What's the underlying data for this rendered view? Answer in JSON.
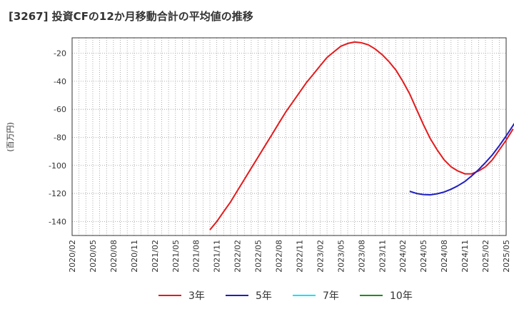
{
  "chart_data": {
    "type": "line",
    "title": "[3267]  投資CFの12か月移動合計の平均値の推移",
    "ylabel": "(百万円)",
    "xlabel": "",
    "x_ticks": [
      "2020/02",
      "2020/05",
      "2020/08",
      "2020/11",
      "2021/02",
      "2021/05",
      "2021/08",
      "2021/11",
      "2022/02",
      "2022/05",
      "2022/08",
      "2022/11",
      "2023/02",
      "2023/05",
      "2023/08",
      "2023/11",
      "2024/02",
      "2024/05",
      "2024/08",
      "2024/11",
      "2025/02",
      "2025/05"
    ],
    "y_ticks": [
      -20,
      -40,
      -60,
      -80,
      -100,
      -120,
      -140
    ],
    "ylim": [
      -150,
      -9
    ],
    "grid": true,
    "legend_position": "bottom",
    "series": [
      {
        "name": "3年",
        "color": "#e31a1c",
        "points": [
          [
            "2021/10",
            -146
          ],
          [
            "2021/11",
            -140
          ],
          [
            "2021/12",
            -133
          ],
          [
            "2022/01",
            -126
          ],
          [
            "2022/02",
            -118
          ],
          [
            "2022/03",
            -110
          ],
          [
            "2022/04",
            -102
          ],
          [
            "2022/05",
            -94
          ],
          [
            "2022/06",
            -86
          ],
          [
            "2022/07",
            -78
          ],
          [
            "2022/08",
            -70
          ],
          [
            "2022/09",
            -62
          ],
          [
            "2022/10",
            -55
          ],
          [
            "2022/11",
            -48
          ],
          [
            "2022/12",
            -41
          ],
          [
            "2023/01",
            -35
          ],
          [
            "2023/02",
            -29
          ],
          [
            "2023/03",
            -23
          ],
          [
            "2023/04",
            -19
          ],
          [
            "2023/05",
            -15
          ],
          [
            "2023/06",
            -13
          ],
          [
            "2023/07",
            -12
          ],
          [
            "2023/08",
            -12.5
          ],
          [
            "2023/09",
            -14
          ],
          [
            "2023/10",
            -17
          ],
          [
            "2023/11",
            -21
          ],
          [
            "2023/12",
            -26
          ],
          [
            "2024/01",
            -32
          ],
          [
            "2024/02",
            -40
          ],
          [
            "2024/03",
            -49
          ],
          [
            "2024/04",
            -60
          ],
          [
            "2024/05",
            -71
          ],
          [
            "2024/06",
            -81
          ],
          [
            "2024/07",
            -89
          ],
          [
            "2024/08",
            -96
          ],
          [
            "2024/09",
            -101
          ],
          [
            "2024/10",
            -104
          ],
          [
            "2024/11",
            -106
          ],
          [
            "2024/12",
            -106
          ],
          [
            "2025/01",
            -104
          ],
          [
            "2025/02",
            -101
          ],
          [
            "2025/03",
            -96
          ],
          [
            "2025/04",
            -89
          ],
          [
            "2025/05",
            -82
          ],
          [
            "2025/06",
            -74
          ]
        ]
      },
      {
        "name": "5年",
        "color": "#1f1fbf",
        "points": [
          [
            "2024/03",
            -118.5
          ],
          [
            "2024/04",
            -120
          ],
          [
            "2024/05",
            -120.8
          ],
          [
            "2024/06",
            -121
          ],
          [
            "2024/07",
            -120.2
          ],
          [
            "2024/08",
            -119
          ],
          [
            "2024/09",
            -117
          ],
          [
            "2024/10",
            -114.5
          ],
          [
            "2024/11",
            -111.5
          ],
          [
            "2024/12",
            -107.5
          ],
          [
            "2025/01",
            -103
          ],
          [
            "2025/02",
            -98
          ],
          [
            "2025/03",
            -92.5
          ],
          [
            "2025/04",
            -86
          ],
          [
            "2025/05",
            -79
          ],
          [
            "2025/06",
            -71.5
          ],
          [
            "2025/07",
            -64
          ]
        ]
      },
      {
        "name": "7年",
        "color": "#00e5ff",
        "points": []
      },
      {
        "name": "10年",
        "color": "#228b22",
        "points": []
      }
    ]
  }
}
